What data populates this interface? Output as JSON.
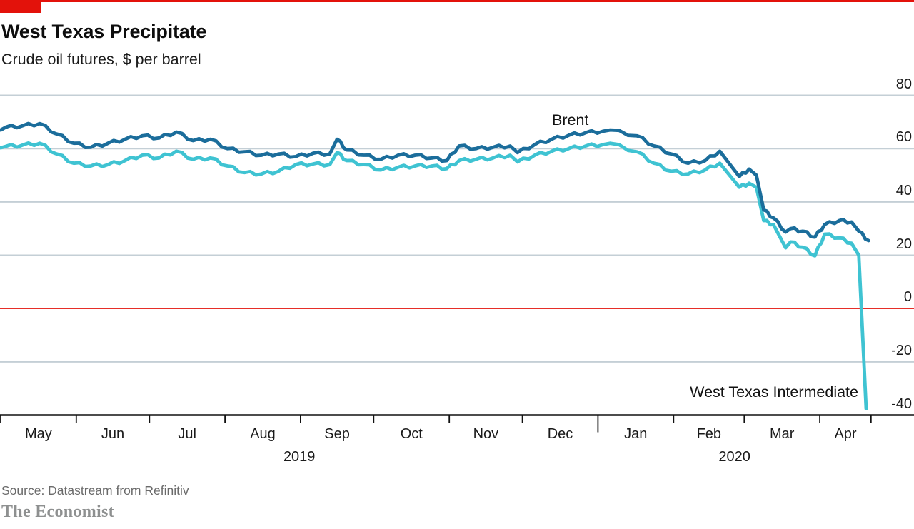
{
  "branding": {
    "logo_text": "The Economist",
    "red_accent": "#e3120b"
  },
  "header": {
    "title": "West Texas Precipitate",
    "subtitle": "Crude oil futures, $ per barrel"
  },
  "annotations": {
    "brent_label": "Brent",
    "wti_label": "West Texas Intermediate"
  },
  "source": "Source: Datastream from Refinitiv",
  "colors": {
    "brent_line": "#1b6d9b",
    "wti_line": "#3fc3d2",
    "gridline": "#c4cfd6",
    "zero_line": "#e3120b",
    "axis": "#111111"
  },
  "chart_data": {
    "type": "line",
    "title": "West Texas Precipitate",
    "subtitle": "Crude oil futures, $ per barrel",
    "ylabel": "$ per barrel",
    "ylim": [
      -40,
      80
    ],
    "yticks": [
      80,
      60,
      40,
      20,
      0,
      -20,
      -40
    ],
    "grid": "horizontal",
    "zero_line_highlighted": true,
    "legend_position": "inline-labels",
    "x_range": [
      "2019-05-01",
      "2020-04-22"
    ],
    "months": [
      {
        "label": "May",
        "start": "2019-05-01"
      },
      {
        "label": "Jun",
        "start": "2019-06-01"
      },
      {
        "label": "Jul",
        "start": "2019-07-01"
      },
      {
        "label": "Aug",
        "start": "2019-08-01"
      },
      {
        "label": "Sep",
        "start": "2019-09-01"
      },
      {
        "label": "Oct",
        "start": "2019-10-01"
      },
      {
        "label": "Nov",
        "start": "2019-11-01"
      },
      {
        "label": "Dec",
        "start": "2019-12-01"
      },
      {
        "label": "Jan",
        "start": "2020-01-01"
      },
      {
        "label": "Feb",
        "start": "2020-02-01"
      },
      {
        "label": "Mar",
        "start": "2020-03-01"
      },
      {
        "label": "Apr",
        "start": "2020-04-01"
      }
    ],
    "year_dividers": [
      "2020-01-01"
    ],
    "year_labels": [
      {
        "label": "2019",
        "from": "2019-05-01",
        "to": "2020-01-01"
      },
      {
        "label": "2020",
        "from": "2020-01-01",
        "to": "2020-04-22"
      }
    ],
    "series": [
      {
        "name": "West Texas Intermediate",
        "color": "#3fc3d2",
        "points": [
          [
            "2019-05-01",
            60.3
          ],
          [
            "2019-05-03",
            60.8
          ],
          [
            "2019-05-10",
            61.3
          ],
          [
            "2019-05-17",
            62.0
          ],
          [
            "2019-05-24",
            58.0
          ],
          [
            "2019-05-31",
            54.5
          ],
          [
            "2019-06-07",
            53.5
          ],
          [
            "2019-06-14",
            54.0
          ],
          [
            "2019-06-21",
            55.5
          ],
          [
            "2019-06-28",
            57.5
          ],
          [
            "2019-07-05",
            56.5
          ],
          [
            "2019-07-12",
            59.0
          ],
          [
            "2019-07-19",
            56.0
          ],
          [
            "2019-07-26",
            56.5
          ],
          [
            "2019-08-02",
            53.5
          ],
          [
            "2019-08-09",
            51.0
          ],
          [
            "2019-08-16",
            50.5
          ],
          [
            "2019-08-23",
            51.5
          ],
          [
            "2019-08-30",
            54.0
          ],
          [
            "2019-09-06",
            54.2
          ],
          [
            "2019-09-13",
            54.0
          ],
          [
            "2019-09-16",
            58.5
          ],
          [
            "2019-09-20",
            55.5
          ],
          [
            "2019-09-27",
            54.0
          ],
          [
            "2019-10-04",
            52.0
          ],
          [
            "2019-10-11",
            53.0
          ],
          [
            "2019-10-18",
            53.5
          ],
          [
            "2019-10-25",
            53.5
          ],
          [
            "2019-10-31",
            52.5
          ],
          [
            "2019-11-05",
            55.5
          ],
          [
            "2019-11-12",
            56.0
          ],
          [
            "2019-11-19",
            56.5
          ],
          [
            "2019-11-26",
            57.5
          ],
          [
            "2019-11-29",
            55.0
          ],
          [
            "2019-12-06",
            57.5
          ],
          [
            "2019-12-13",
            59.0
          ],
          [
            "2019-12-20",
            60.0
          ],
          [
            "2019-12-27",
            61.0
          ],
          [
            "2020-01-03",
            61.5
          ],
          [
            "2020-01-06",
            62.0
          ],
          [
            "2020-01-17",
            58.8
          ],
          [
            "2020-01-24",
            54.5
          ],
          [
            "2020-01-31",
            51.5
          ],
          [
            "2020-02-07",
            50.5
          ],
          [
            "2020-02-14",
            52.0
          ],
          [
            "2020-02-20",
            54.5
          ],
          [
            "2020-02-28",
            45.5
          ],
          [
            "2020-03-03",
            47.0
          ],
          [
            "2020-03-06",
            45.5
          ],
          [
            "2020-03-09",
            33.0
          ],
          [
            "2020-03-13",
            31.5
          ],
          [
            "2020-03-18",
            22.8
          ],
          [
            "2020-03-20",
            25.0
          ],
          [
            "2020-03-25",
            23.0
          ],
          [
            "2020-03-30",
            19.8
          ],
          [
            "2020-04-03",
            27.9
          ],
          [
            "2020-04-09",
            26.5
          ],
          [
            "2020-04-14",
            24.5
          ],
          [
            "2020-04-17",
            20.0
          ],
          [
            "2020-04-20",
            -37.6
          ]
        ]
      },
      {
        "name": "Brent",
        "color": "#1b6d9b",
        "points": [
          [
            "2019-05-01",
            67.0
          ],
          [
            "2019-05-03",
            68.0
          ],
          [
            "2019-05-10",
            68.6
          ],
          [
            "2019-05-17",
            69.4
          ],
          [
            "2019-05-24",
            65.5
          ],
          [
            "2019-05-31",
            62.0
          ],
          [
            "2019-06-07",
            60.5
          ],
          [
            "2019-06-14",
            62.0
          ],
          [
            "2019-06-21",
            63.5
          ],
          [
            "2019-06-28",
            64.8
          ],
          [
            "2019-07-05",
            64.0
          ],
          [
            "2019-07-12",
            66.2
          ],
          [
            "2019-07-19",
            63.0
          ],
          [
            "2019-07-26",
            63.5
          ],
          [
            "2019-08-02",
            60.0
          ],
          [
            "2019-08-09",
            58.8
          ],
          [
            "2019-08-16",
            57.5
          ],
          [
            "2019-08-23",
            58.0
          ],
          [
            "2019-08-30",
            57.0
          ],
          [
            "2019-09-06",
            58.2
          ],
          [
            "2019-09-13",
            58.0
          ],
          [
            "2019-09-16",
            63.5
          ],
          [
            "2019-09-20",
            59.5
          ],
          [
            "2019-09-27",
            57.5
          ],
          [
            "2019-10-04",
            56.0
          ],
          [
            "2019-10-11",
            57.5
          ],
          [
            "2019-10-18",
            57.5
          ],
          [
            "2019-10-25",
            56.5
          ],
          [
            "2019-10-31",
            55.5
          ],
          [
            "2019-11-05",
            61.0
          ],
          [
            "2019-11-12",
            60.0
          ],
          [
            "2019-11-19",
            60.5
          ],
          [
            "2019-11-26",
            61.0
          ],
          [
            "2019-11-29",
            58.5
          ],
          [
            "2019-12-06",
            61.5
          ],
          [
            "2019-12-13",
            63.5
          ],
          [
            "2019-12-20",
            65.0
          ],
          [
            "2019-12-27",
            66.0
          ],
          [
            "2020-01-03",
            66.5
          ],
          [
            "2020-01-06",
            67.0
          ],
          [
            "2020-01-17",
            64.8
          ],
          [
            "2020-01-24",
            61.0
          ],
          [
            "2020-01-31",
            58.0
          ],
          [
            "2020-02-07",
            54.5
          ],
          [
            "2020-02-14",
            55.5
          ],
          [
            "2020-02-20",
            59.0
          ],
          [
            "2020-02-28",
            49.5
          ],
          [
            "2020-03-03",
            52.3
          ],
          [
            "2020-03-06",
            50.0
          ],
          [
            "2020-03-09",
            37.0
          ],
          [
            "2020-03-13",
            34.0
          ],
          [
            "2020-03-18",
            28.7
          ],
          [
            "2020-03-20",
            30.0
          ],
          [
            "2020-03-25",
            29.0
          ],
          [
            "2020-03-30",
            26.8
          ],
          [
            "2020-04-03",
            31.5
          ],
          [
            "2020-04-09",
            33.0
          ],
          [
            "2020-04-14",
            32.5
          ],
          [
            "2020-04-17",
            29.0
          ],
          [
            "2020-04-21",
            25.5
          ]
        ]
      }
    ]
  }
}
